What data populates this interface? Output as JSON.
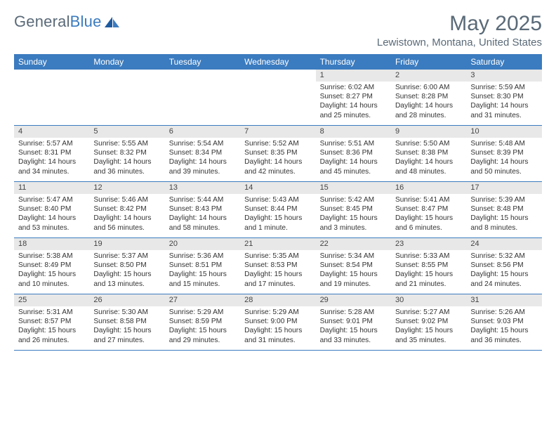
{
  "brand": {
    "part1": "General",
    "part2": "Blue"
  },
  "title": "May 2025",
  "location": "Lewistown, Montana, United States",
  "colors": {
    "header_bg": "#3b7bbf",
    "header_text": "#ffffff",
    "daynum_bg": "#e8e8e8",
    "divider": "#3b7bbf",
    "page_bg": "#ffffff",
    "text": "#333333",
    "title_text": "#5a6a78"
  },
  "day_headers": [
    "Sunday",
    "Monday",
    "Tuesday",
    "Wednesday",
    "Thursday",
    "Friday",
    "Saturday"
  ],
  "weeks": [
    {
      "nums": [
        "",
        "",
        "",
        "",
        "1",
        "2",
        "3"
      ],
      "cells": [
        null,
        null,
        null,
        null,
        {
          "sunrise": "6:02 AM",
          "sunset": "8:27 PM",
          "daylight": "14 hours and 25 minutes."
        },
        {
          "sunrise": "6:00 AM",
          "sunset": "8:28 PM",
          "daylight": "14 hours and 28 minutes."
        },
        {
          "sunrise": "5:59 AM",
          "sunset": "8:30 PM",
          "daylight": "14 hours and 31 minutes."
        }
      ]
    },
    {
      "nums": [
        "4",
        "5",
        "6",
        "7",
        "8",
        "9",
        "10"
      ],
      "cells": [
        {
          "sunrise": "5:57 AM",
          "sunset": "8:31 PM",
          "daylight": "14 hours and 34 minutes."
        },
        {
          "sunrise": "5:55 AM",
          "sunset": "8:32 PM",
          "daylight": "14 hours and 36 minutes."
        },
        {
          "sunrise": "5:54 AM",
          "sunset": "8:34 PM",
          "daylight": "14 hours and 39 minutes."
        },
        {
          "sunrise": "5:52 AM",
          "sunset": "8:35 PM",
          "daylight": "14 hours and 42 minutes."
        },
        {
          "sunrise": "5:51 AM",
          "sunset": "8:36 PM",
          "daylight": "14 hours and 45 minutes."
        },
        {
          "sunrise": "5:50 AM",
          "sunset": "8:38 PM",
          "daylight": "14 hours and 48 minutes."
        },
        {
          "sunrise": "5:48 AM",
          "sunset": "8:39 PM",
          "daylight": "14 hours and 50 minutes."
        }
      ]
    },
    {
      "nums": [
        "11",
        "12",
        "13",
        "14",
        "15",
        "16",
        "17"
      ],
      "cells": [
        {
          "sunrise": "5:47 AM",
          "sunset": "8:40 PM",
          "daylight": "14 hours and 53 minutes."
        },
        {
          "sunrise": "5:46 AM",
          "sunset": "8:42 PM",
          "daylight": "14 hours and 56 minutes."
        },
        {
          "sunrise": "5:44 AM",
          "sunset": "8:43 PM",
          "daylight": "14 hours and 58 minutes."
        },
        {
          "sunrise": "5:43 AM",
          "sunset": "8:44 PM",
          "daylight": "15 hours and 1 minute."
        },
        {
          "sunrise": "5:42 AM",
          "sunset": "8:45 PM",
          "daylight": "15 hours and 3 minutes."
        },
        {
          "sunrise": "5:41 AM",
          "sunset": "8:47 PM",
          "daylight": "15 hours and 6 minutes."
        },
        {
          "sunrise": "5:39 AM",
          "sunset": "8:48 PM",
          "daylight": "15 hours and 8 minutes."
        }
      ]
    },
    {
      "nums": [
        "18",
        "19",
        "20",
        "21",
        "22",
        "23",
        "24"
      ],
      "cells": [
        {
          "sunrise": "5:38 AM",
          "sunset": "8:49 PM",
          "daylight": "15 hours and 10 minutes."
        },
        {
          "sunrise": "5:37 AM",
          "sunset": "8:50 PM",
          "daylight": "15 hours and 13 minutes."
        },
        {
          "sunrise": "5:36 AM",
          "sunset": "8:51 PM",
          "daylight": "15 hours and 15 minutes."
        },
        {
          "sunrise": "5:35 AM",
          "sunset": "8:53 PM",
          "daylight": "15 hours and 17 minutes."
        },
        {
          "sunrise": "5:34 AM",
          "sunset": "8:54 PM",
          "daylight": "15 hours and 19 minutes."
        },
        {
          "sunrise": "5:33 AM",
          "sunset": "8:55 PM",
          "daylight": "15 hours and 21 minutes."
        },
        {
          "sunrise": "5:32 AM",
          "sunset": "8:56 PM",
          "daylight": "15 hours and 24 minutes."
        }
      ]
    },
    {
      "nums": [
        "25",
        "26",
        "27",
        "28",
        "29",
        "30",
        "31"
      ],
      "cells": [
        {
          "sunrise": "5:31 AM",
          "sunset": "8:57 PM",
          "daylight": "15 hours and 26 minutes."
        },
        {
          "sunrise": "5:30 AM",
          "sunset": "8:58 PM",
          "daylight": "15 hours and 27 minutes."
        },
        {
          "sunrise": "5:29 AM",
          "sunset": "8:59 PM",
          "daylight": "15 hours and 29 minutes."
        },
        {
          "sunrise": "5:29 AM",
          "sunset": "9:00 PM",
          "daylight": "15 hours and 31 minutes."
        },
        {
          "sunrise": "5:28 AM",
          "sunset": "9:01 PM",
          "daylight": "15 hours and 33 minutes."
        },
        {
          "sunrise": "5:27 AM",
          "sunset": "9:02 PM",
          "daylight": "15 hours and 35 minutes."
        },
        {
          "sunrise": "5:26 AM",
          "sunset": "9:03 PM",
          "daylight": "15 hours and 36 minutes."
        }
      ]
    }
  ],
  "labels": {
    "sunrise": "Sunrise:",
    "sunset": "Sunset:",
    "daylight": "Daylight:"
  }
}
